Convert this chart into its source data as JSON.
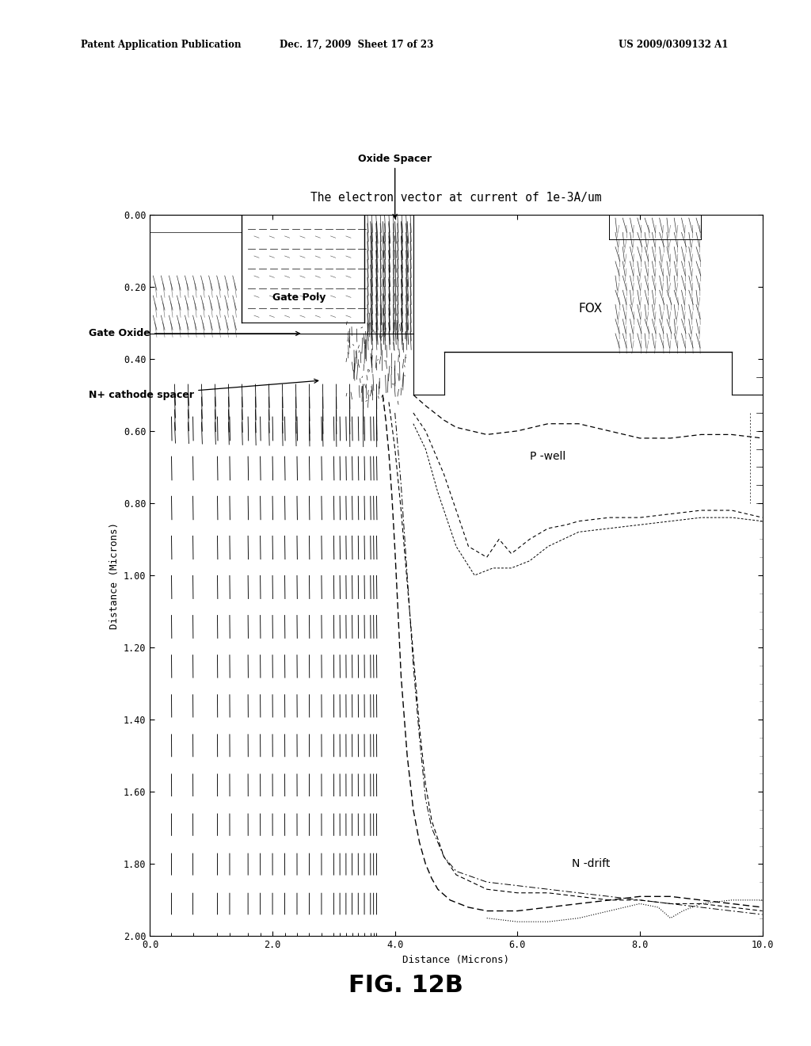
{
  "title": "The electron vector at current of 1e-3A/um",
  "fig_label": "FIG. 12B",
  "patent_left": "Patent Application Publication",
  "patent_date": "Dec. 17, 2009  Sheet 17 of 23",
  "patent_num": "US 2009/0309132 A1",
  "xlabel": "Distance (Microns)",
  "ylabel": "Distance (Microns)",
  "xlim": [
    0.0,
    10.0
  ],
  "ylim": [
    0.0,
    2.0
  ],
  "xticks": [
    0.0,
    2.0,
    4.0,
    6.0,
    8.0,
    10.0
  ],
  "yticks": [
    0.0,
    0.2,
    0.4,
    0.6,
    0.8,
    1.0,
    1.2,
    1.4,
    1.6,
    1.8,
    2.0
  ],
  "bg_color": "#ffffff"
}
